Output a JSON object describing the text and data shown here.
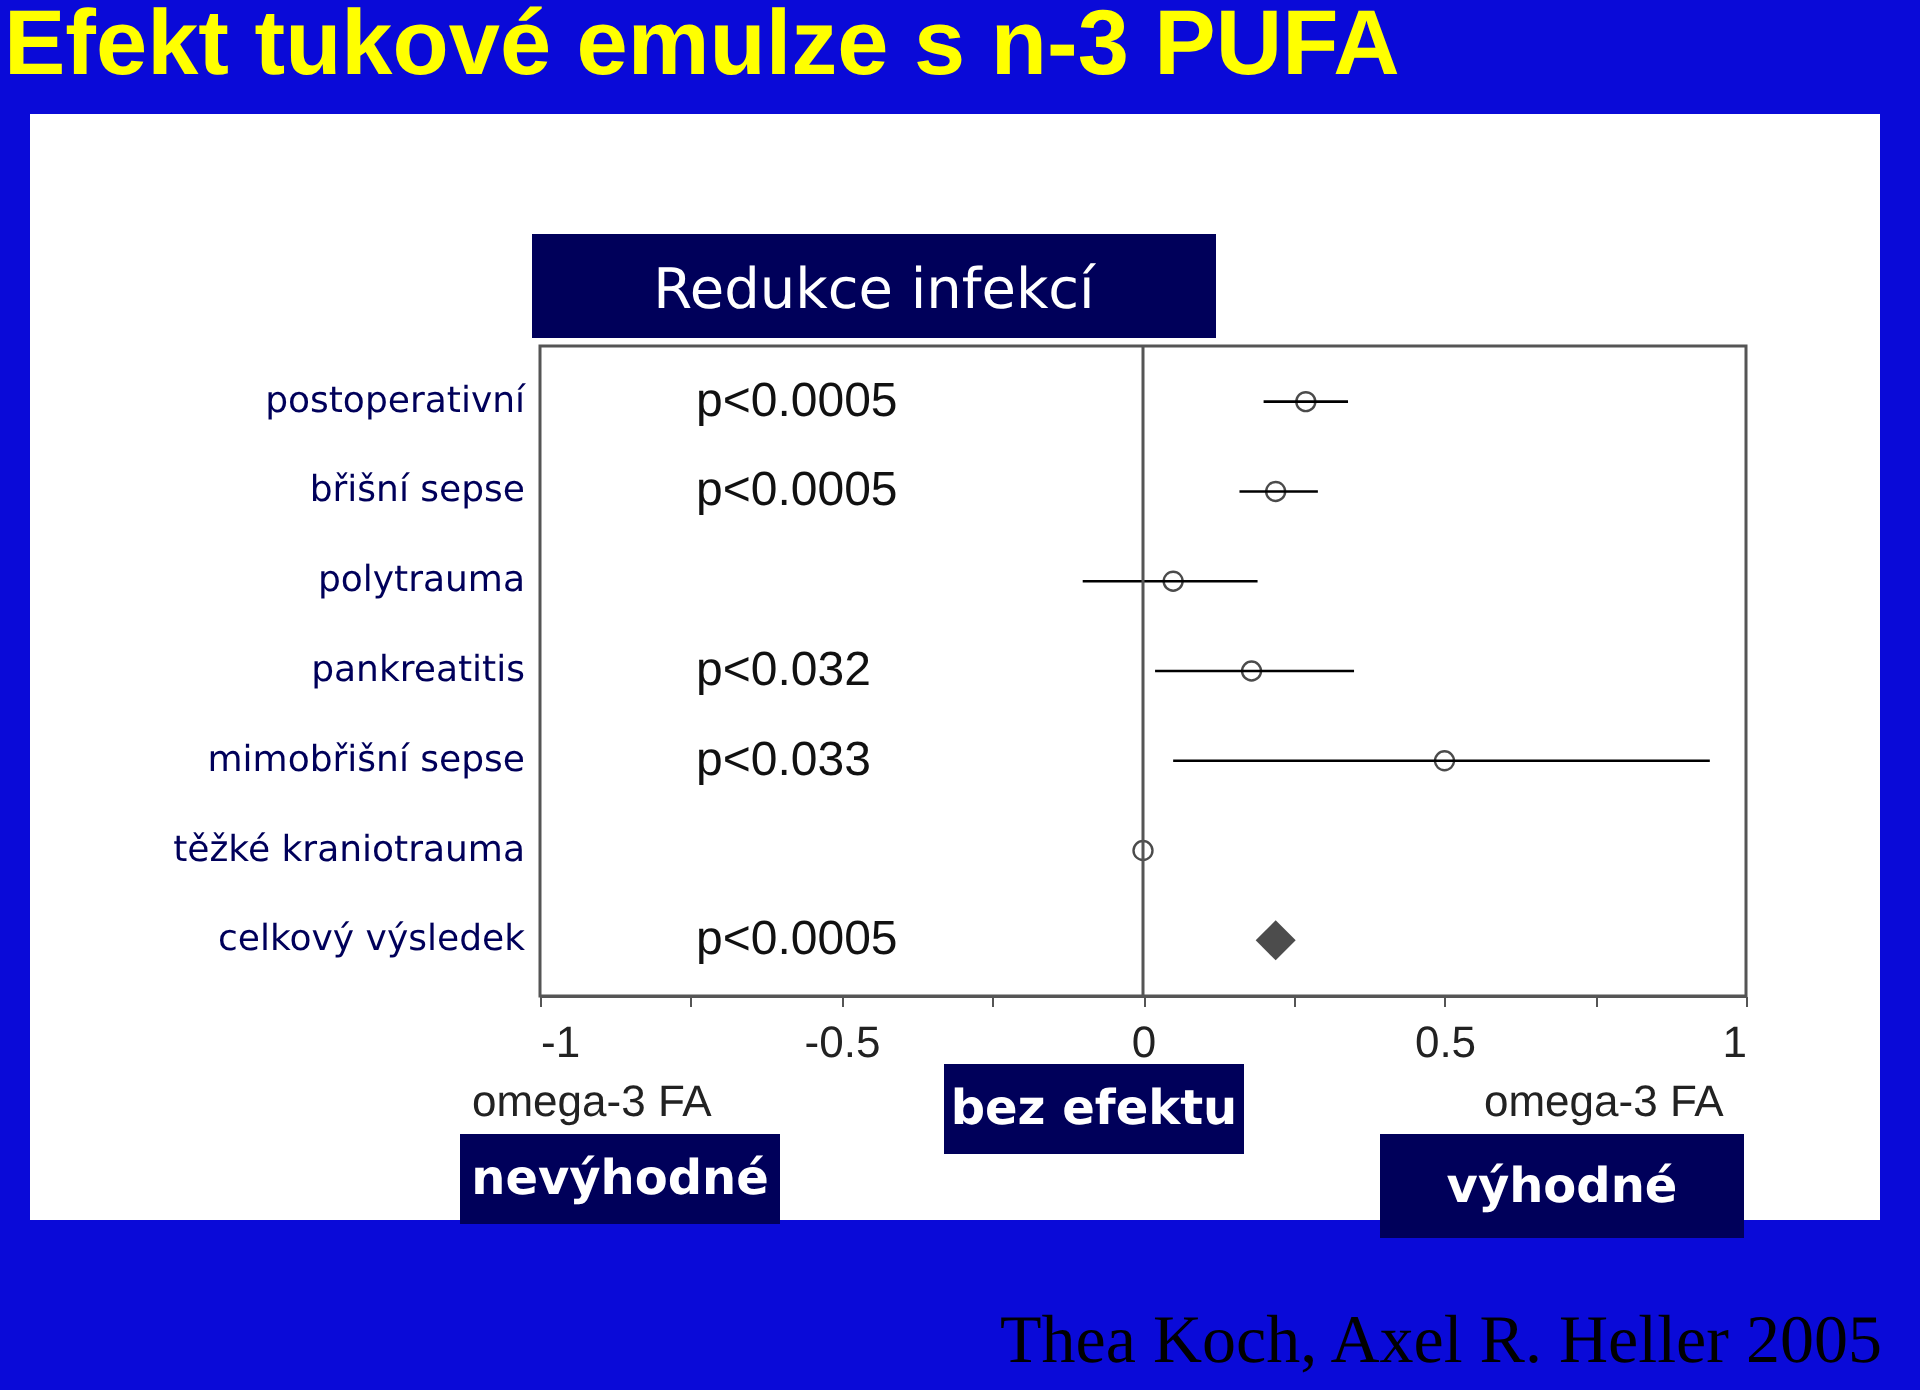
{
  "chart_data": {
    "type": "scatter",
    "orientation": "horizontal",
    "title": "Efekt tukové emulze s n-3 PUFA",
    "subtitle": "Redukce infekcí",
    "categories": [
      "postoperativní",
      "břišní sepse",
      "polytrauma",
      "pankreatitis",
      "mimobřišní sepse",
      "těžké kraniotrauma",
      "celkový výsledek"
    ],
    "series": [
      {
        "color": "#000000",
        "marker": "circle",
        "values": [
          0.27,
          0.22,
          0.05,
          0.18,
          0.5,
          0.0,
          null
        ],
        "errors": [
          [
            0.2,
            0.34
          ],
          [
            0.16,
            0.29
          ],
          [
            -0.1,
            0.19
          ],
          [
            0.02,
            0.35
          ],
          [
            0.05,
            0.94
          ],
          null,
          null
        ]
      },
      {
        "color": "#000000",
        "marker": "diamond",
        "values": [
          null,
          null,
          null,
          null,
          null,
          null,
          0.22
        ]
      }
    ],
    "xlim": [
      -1,
      1
    ],
    "xticks": [
      -1,
      {
        "value": -0.75,
        "label": null
      },
      -0.5,
      {
        "value": -0.25,
        "label": null
      },
      0,
      {
        "value": 0.25,
        "label": null
      },
      0.5,
      {
        "value": 0.75,
        "label": null
      },
      1
    ],
    "ref_lines": [
      {
        "axis": "x",
        "value": 0
      }
    ],
    "grid": false,
    "annotations": [
      "p<0.0005",
      "p<0.0005",
      "p<0.032",
      "p<0.033",
      "p<0.0005",
      "omega-3 FA",
      "nevýhodné",
      "bez efektu",
      "omega-3 FA",
      "výhodné",
      "Thea Koch, Axel R. Heller 2005"
    ]
  }
}
